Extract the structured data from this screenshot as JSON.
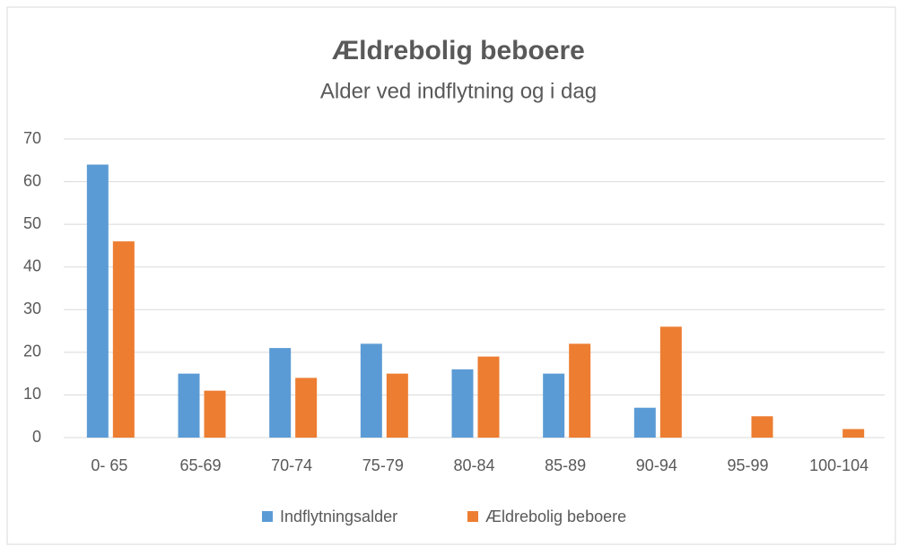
{
  "chart_data": {
    "type": "bar",
    "title": "Ældrebolig beboere",
    "subtitle": "Alder ved indflytning og i dag",
    "categories": [
      "0- 65",
      "65-69",
      "70-74",
      "75-79",
      "80-84",
      "85-89",
      "90-94",
      "95-99",
      "100-104"
    ],
    "series": [
      {
        "name": "Indflytningsalder",
        "color": "#5b9bd5",
        "values": [
          64,
          15,
          21,
          22,
          16,
          15,
          7,
          0,
          0
        ]
      },
      {
        "name": "Ældrebolig beboere",
        "color": "#ed7d31",
        "values": [
          46,
          11,
          14,
          15,
          19,
          22,
          26,
          5,
          2
        ]
      }
    ],
    "ylim": [
      0,
      70
    ],
    "yticks": [
      0,
      10,
      20,
      30,
      40,
      50,
      60,
      70
    ],
    "grid": true,
    "legend": "bottom"
  }
}
